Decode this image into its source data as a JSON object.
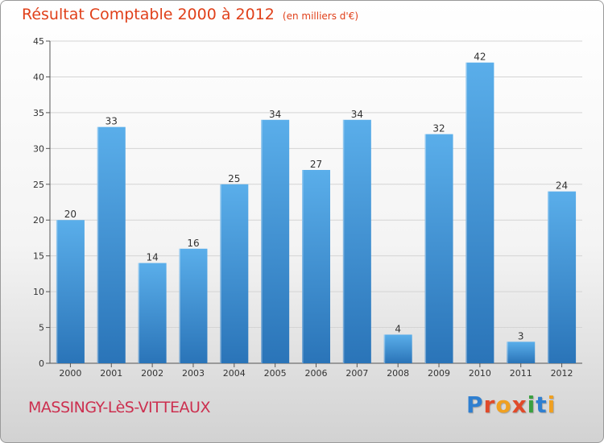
{
  "chart_data": {
    "type": "bar",
    "title": "Résultat Comptable 2000 à 2012",
    "subtitle": "(en milliers d'€)",
    "categories": [
      "2000",
      "2001",
      "2002",
      "2003",
      "2004",
      "2005",
      "2006",
      "2007",
      "2008",
      "2009",
      "2010",
      "2011",
      "2012"
    ],
    "values": [
      20,
      33,
      14,
      16,
      25,
      34,
      27,
      34,
      4,
      32,
      42,
      3,
      24
    ],
    "ylim": [
      0,
      45
    ],
    "yticks": [
      0,
      5,
      10,
      15,
      20,
      25,
      30,
      35,
      40,
      45
    ],
    "grid": true,
    "bar_color": "#3f8fd2",
    "bar_color_light": "#5aaeea",
    "bar_color_dark": "#2a74b8"
  },
  "footer": {
    "place": "MASSINGY-LèS-VITTEAUX",
    "brand": [
      "P",
      "r",
      "o",
      "x",
      "i",
      "t",
      "i"
    ],
    "brand_colors": [
      "#2f7fd0",
      "#e04a2a",
      "#f0a020",
      "#e04a2a",
      "#3aa040",
      "#2f7fd0",
      "#f0a020"
    ]
  }
}
